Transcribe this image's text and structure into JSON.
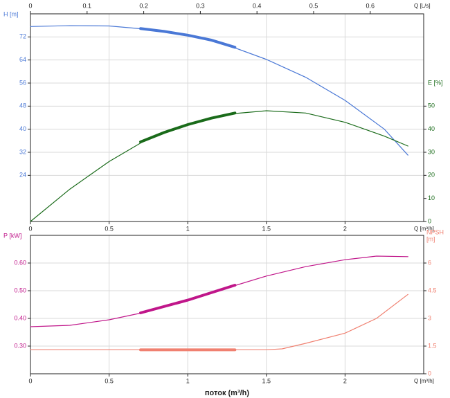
{
  "chart_data": [
    {
      "type": "line",
      "xlabel": "Q [m³/h]",
      "x2label": "Q [L/s]",
      "ylabel": "H [m]",
      "y2label": "E [%]",
      "xlim": [
        0,
        2.5
      ],
      "xticks": [
        0,
        0.5,
        1,
        1.5,
        2
      ],
      "x2lim": [
        0,
        0.6944
      ],
      "x2ticks": [
        0,
        0.1,
        0.2,
        0.3,
        0.4,
        0.5,
        0.6
      ],
      "ylim": [
        8,
        80
      ],
      "yticks": [
        24,
        32,
        40,
        48,
        56,
        64,
        72
      ],
      "y2lim": [
        0,
        90
      ],
      "y2ticks": [
        0,
        10,
        20,
        30,
        40,
        50
      ],
      "grid": true,
      "series": [
        {
          "color": "#4a78d6",
          "line_width": 1.2,
          "x": [
            0,
            0.25,
            0.5,
            0.75,
            1,
            1.25,
            1.5,
            1.75,
            2,
            2.25,
            2.4
          ],
          "values": [
            75.6,
            75.9,
            75.8,
            74.6,
            72.6,
            69.2,
            64.2,
            58,
            50,
            40,
            31
          ]
        },
        {
          "color": "#4a78d6",
          "line_width": 4,
          "x": [
            0.7,
            0.85,
            1,
            1.15,
            1.3
          ],
          "values": [
            74.9,
            73.9,
            72.6,
            70.9,
            68.4
          ]
        },
        {
          "color": "#1a6b1a",
          "line_width": 1.2,
          "axis": "y2",
          "x": [
            0,
            0.25,
            0.5,
            0.75,
            1,
            1.25,
            1.5,
            1.75,
            2,
            2.25,
            2.4
          ],
          "values": [
            0,
            14,
            26,
            36,
            42,
            46.5,
            48,
            47,
            43,
            37,
            32.7
          ]
        },
        {
          "color": "#1a6b1a",
          "line_width": 4,
          "axis": "y2",
          "x": [
            0.7,
            0.85,
            1,
            1.15,
            1.3
          ],
          "values": [
            34.5,
            38.6,
            42,
            44.8,
            47
          ]
        }
      ]
    },
    {
      "type": "line",
      "xlabel": "Q [m³/h]",
      "xtitle": "поток (m³/h)",
      "ylabel": "P [kW]",
      "y2label": [
        "NPSH",
        "[m]"
      ],
      "xlim": [
        0,
        2.5
      ],
      "xticks": [
        0,
        0.5,
        1,
        1.5,
        2
      ],
      "ylim": [
        0.2,
        0.7
      ],
      "yticks": [
        {
          "value": 0.3,
          "label": "0.30"
        },
        {
          "value": 0.4,
          "label": "0.40"
        },
        {
          "value": 0.5,
          "label": "0.50"
        },
        {
          "value": 0.6,
          "label": "0.60"
        }
      ],
      "y2lim": [
        0,
        7.5
      ],
      "y2ticks": [
        0,
        1.5,
        3,
        4.5,
        6
      ],
      "grid": true,
      "series": [
        {
          "color": "#c0168a",
          "line_width": 1.2,
          "x": [
            0,
            0.25,
            0.5,
            0.75,
            1,
            1.25,
            1.5,
            1.75,
            2,
            2.2,
            2.4
          ],
          "values": [
            0.37,
            0.375,
            0.395,
            0.425,
            0.465,
            0.51,
            0.553,
            0.587,
            0.612,
            0.625,
            0.623
          ]
        },
        {
          "color": "#c0168a",
          "line_width": 4,
          "x": [
            0.7,
            1,
            1.3
          ],
          "values": [
            0.42,
            0.466,
            0.52
          ]
        },
        {
          "color": "#f08070",
          "line_width": 1.2,
          "axis": "y2",
          "x": [
            0,
            0.5,
            1,
            1.5,
            1.6,
            1.75,
            2,
            2.2,
            2.4
          ],
          "values": [
            1.3,
            1.3,
            1.3,
            1.3,
            1.35,
            1.65,
            2.2,
            3,
            4.3
          ]
        },
        {
          "color": "#f08070",
          "line_width": 4,
          "axis": "y2",
          "x": [
            0.7,
            1,
            1.3
          ],
          "values": [
            1.3,
            1.3,
            1.3
          ]
        }
      ]
    }
  ]
}
